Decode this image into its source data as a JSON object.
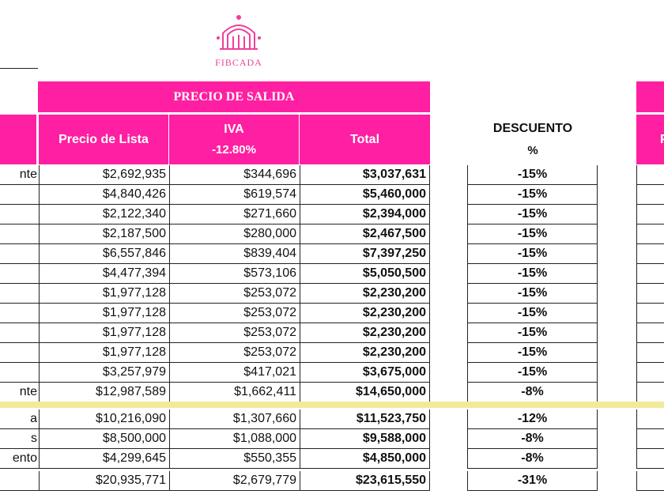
{
  "logo": {
    "text": "FIBCADA",
    "color": "#ff1fa2",
    "icon": "arch-building-icon"
  },
  "colors": {
    "accent": "#ff1fa2",
    "separator": "#f1ea9a"
  },
  "banner": {
    "title": "PRECIO DE SALIDA"
  },
  "headers": {
    "precio_lista": "Precio de Lista",
    "iva": "IVA",
    "iva_rate": "-12.80%",
    "total": "Total",
    "descuento": "DESCUENTO",
    "descuento_unit": "%",
    "right_partial": "P"
  },
  "rows": [
    {
      "label": "nte",
      "precio": "$2,692,935",
      "iva": "$344,696",
      "total": "$3,037,631",
      "descuento": "-15%"
    },
    {
      "label": "",
      "precio": "$4,840,426",
      "iva": "$619,574",
      "total": "$5,460,000",
      "descuento": "-15%"
    },
    {
      "label": "",
      "precio": "$2,122,340",
      "iva": "$271,660",
      "total": "$2,394,000",
      "descuento": "-15%"
    },
    {
      "label": "",
      "precio": "$2,187,500",
      "iva": "$280,000",
      "total": "$2,467,500",
      "descuento": "-15%"
    },
    {
      "label": "",
      "precio": "$6,557,846",
      "iva": "$839,404",
      "total": "$7,397,250",
      "descuento": "-15%"
    },
    {
      "label": "",
      "precio": "$4,477,394",
      "iva": "$573,106",
      "total": "$5,050,500",
      "descuento": "-15%"
    },
    {
      "label": "",
      "precio": "$1,977,128",
      "iva": "$253,072",
      "total": "$2,230,200",
      "descuento": "-15%"
    },
    {
      "label": "",
      "precio": "$1,977,128",
      "iva": "$253,072",
      "total": "$2,230,200",
      "descuento": "-15%"
    },
    {
      "label": "",
      "precio": "$1,977,128",
      "iva": "$253,072",
      "total": "$2,230,200",
      "descuento": "-15%"
    },
    {
      "label": "",
      "precio": "$1,977,128",
      "iva": "$253,072",
      "total": "$2,230,200",
      "descuento": "-15%"
    },
    {
      "label": "",
      "precio": "$3,257,979",
      "iva": "$417,021",
      "total": "$3,675,000",
      "descuento": "-15%"
    },
    {
      "label": "nte",
      "precio": "$12,987,589",
      "iva": "$1,662,411",
      "total": "$14,650,000",
      "descuento": "-8%"
    }
  ],
  "rows2": [
    {
      "label": "a",
      "precio": "$10,216,090",
      "iva": "$1,307,660",
      "total": "$11,523,750",
      "descuento": "-12%"
    },
    {
      "label": "s",
      "precio": "$8,500,000",
      "iva": "$1,088,000",
      "total": "$9,588,000",
      "descuento": "-8%"
    },
    {
      "label": "ento",
      "precio": "$4,299,645",
      "iva": "$550,355",
      "total": "$4,850,000",
      "descuento": "-8%"
    },
    {
      "label": "",
      "precio": "$20,935,771",
      "iva": "$2,679,779",
      "total": "$23,615,550",
      "descuento": "-31%"
    }
  ]
}
